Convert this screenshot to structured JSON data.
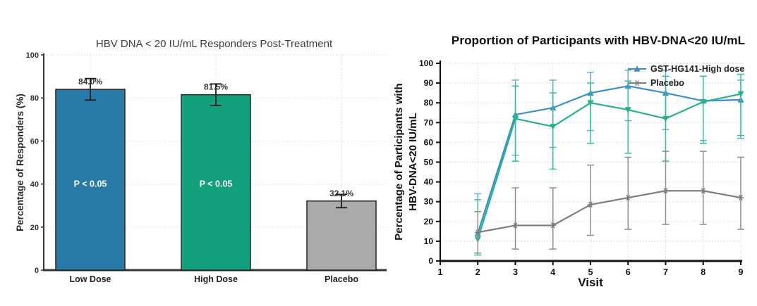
{
  "figure": {
    "background_color": "#ffffff"
  },
  "chart_data": [
    {
      "type": "bar",
      "title": "HBV DNA < 20 IU/mL Responders Post-Treatment",
      "xlabel": "",
      "ylabel": "Percentage of Responders (%)",
      "categories": [
        "Low Dose",
        "High Dose",
        "Placebo"
      ],
      "values": [
        84.0,
        81.5,
        32.1
      ],
      "value_labels": [
        "84.0%",
        "81.5%",
        "32.1%"
      ],
      "error_low": [
        79.0,
        76.5,
        29.0
      ],
      "error_high": [
        89.0,
        86.5,
        35.2
      ],
      "bar_annotations": [
        "P < 0.05",
        "P < 0.05",
        ""
      ],
      "bar_colors": [
        "#2878a8",
        "#13a17d",
        "#aaaaaa"
      ],
      "bar_edge_color": "#252525",
      "ylim": [
        0,
        100
      ],
      "yticks": [
        0,
        20,
        40,
        60,
        80,
        100
      ],
      "grid": true,
      "legend_position": "none"
    },
    {
      "type": "line",
      "title": "Proportion of Participants with HBV-DNA<20 IU/mL",
      "xlabel": "Visit",
      "ylabel_lines": [
        "Percentage of Participants with",
        "HBV-DNA<20 IU/mL"
      ],
      "xlim": [
        1,
        9
      ],
      "ylim": [
        0,
        100
      ],
      "xticks": [
        1,
        2,
        3,
        4,
        5,
        6,
        7,
        8,
        9
      ],
      "yticks": [
        0,
        10,
        20,
        30,
        40,
        50,
        60,
        70,
        80,
        90,
        100
      ],
      "grid": true,
      "legend_position": "top-right",
      "series": [
        {
          "name": "GST-HG141-High dose",
          "in_legend": true,
          "color": "#3d8ec9",
          "error_color": "#66abd8",
          "marker": "triangle-up",
          "x": [
            2,
            3,
            4,
            5,
            6,
            7,
            8,
            9
          ],
          "y": [
            14,
            74,
            77.5,
            85,
            88.5,
            85,
            81,
            81.5
          ],
          "err_low": [
            4,
            53.5,
            57.5,
            66,
            71,
            66.5,
            61,
            62
          ],
          "err_high": [
            34,
            91.5,
            91.5,
            95.5,
            96.5,
            96.5,
            93.5,
            91.5
          ]
        },
        {
          "name": "",
          "in_legend": false,
          "color": "#26b28c",
          "error_color": "#2fc0a2",
          "marker": "triangle-down",
          "x": [
            2,
            3,
            4,
            5,
            6,
            7,
            8,
            9
          ],
          "y": [
            11,
            72,
            68,
            80,
            76.5,
            72,
            80.5,
            84.5
          ],
          "err_low": [
            3,
            50.5,
            46.5,
            59.5,
            54.5,
            50.5,
            59.5,
            63.5
          ],
          "err_high": [
            31,
            88.5,
            85,
            90,
            91,
            93.5,
            93.5,
            94.5
          ]
        },
        {
          "name": "Placebo",
          "in_legend": true,
          "color": "#7d7d7d",
          "error_color": "#8f8f8f",
          "marker": "star",
          "x": [
            2,
            3,
            4,
            5,
            6,
            7,
            8,
            9
          ],
          "y": [
            14.5,
            18,
            18,
            28.5,
            32,
            35.5,
            35.5,
            32
          ],
          "err_low": [
            4,
            6,
            6,
            13,
            16,
            18.5,
            18.5,
            16
          ],
          "err_high": [
            25,
            37,
            37,
            48.5,
            52.5,
            55.5,
            55.5,
            52.5
          ]
        }
      ]
    }
  ]
}
